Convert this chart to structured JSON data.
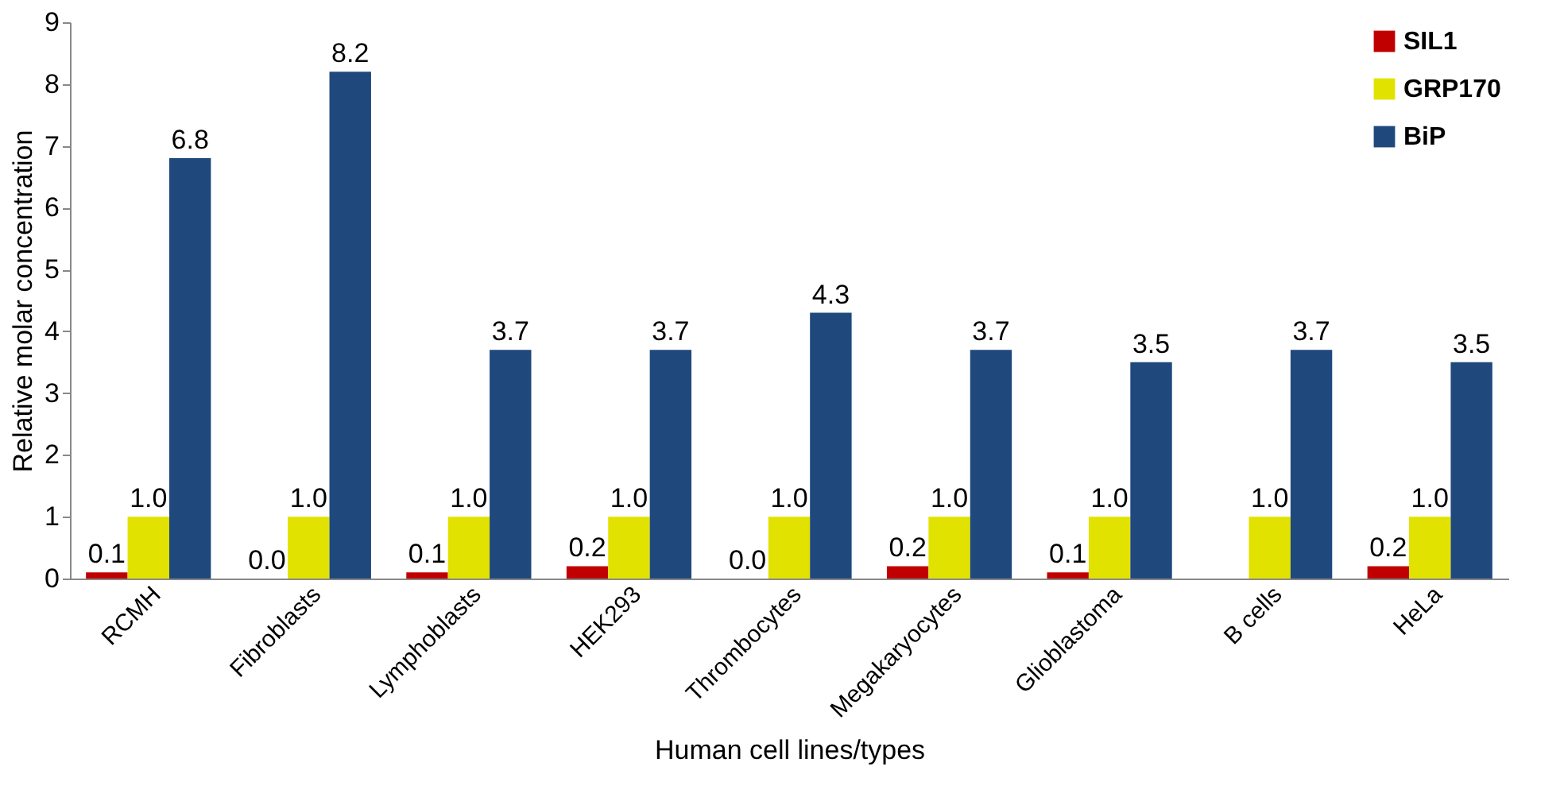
{
  "chart_data": {
    "type": "bar",
    "xlabel": "Human cell lines/types",
    "ylabel": "Relative molar concentration",
    "categories": [
      "RCMH",
      "Fibroblasts",
      "Lymphoblasts",
      "HEK293",
      "Thrombocytes",
      "Megakaryocytes",
      "Glioblastoma",
      "B cells",
      "HeLa"
    ],
    "series": [
      {
        "name": "SIL1",
        "color": "#c00000",
        "values": [
          0.1,
          0.0,
          0.1,
          0.2,
          0.0,
          0.2,
          0.1,
          0.0,
          0.2
        ],
        "value_labels": [
          "0.1",
          "0.0",
          "0.1",
          "0.2",
          "0.0",
          "0.2",
          "0.1",
          null,
          "0.2"
        ]
      },
      {
        "name": "GRP170",
        "color": "#e2e200",
        "values": [
          1.0,
          1.0,
          1.0,
          1.0,
          1.0,
          1.0,
          1.0,
          1.0,
          1.0
        ],
        "value_labels": [
          "1.0",
          "1.0",
          "1.0",
          "1.0",
          "1.0",
          "1.0",
          "1.0",
          "1.0",
          "1.0"
        ]
      },
      {
        "name": "BiP",
        "color": "#1f497d",
        "values": [
          6.8,
          8.2,
          3.7,
          3.7,
          4.3,
          3.7,
          3.5,
          3.7,
          3.5
        ],
        "value_labels": [
          "6.8",
          "8.2",
          "3.7",
          "3.7",
          "4.3",
          "3.7",
          "3.5",
          "3.7",
          "3.5"
        ]
      }
    ],
    "ylim": [
      0,
      9
    ],
    "yticks": [
      0,
      1,
      2,
      3,
      4,
      5,
      6,
      7,
      8,
      9
    ],
    "grid": false,
    "legend": "top right"
  }
}
